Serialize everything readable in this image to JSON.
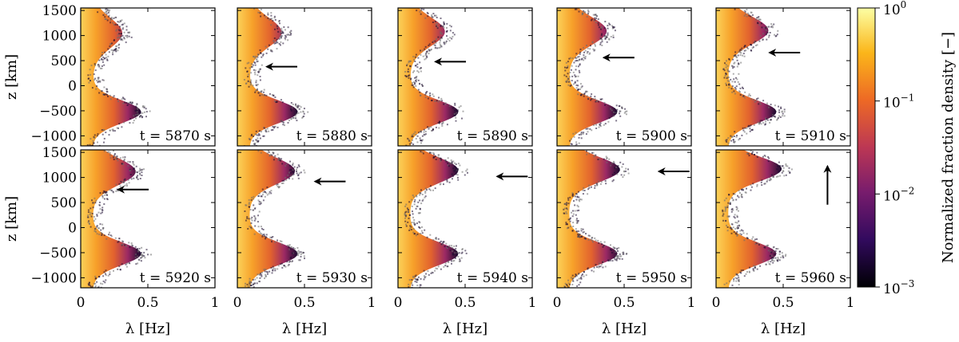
{
  "chart_data": {
    "type": "heatmap",
    "description_free": true,
    "panels": [
      {
        "time_label": "t = 5870 s",
        "t": 5870,
        "arrow": null
      },
      {
        "time_label": "t = 5880 s",
        "t": 5880,
        "arrow": {
          "dir": "left",
          "lambda": 0.22,
          "z": 380
        }
      },
      {
        "time_label": "t = 5890 s",
        "t": 5890,
        "arrow": {
          "dir": "left",
          "lambda": 0.28,
          "z": 480
        }
      },
      {
        "time_label": "t = 5900 s",
        "t": 5900,
        "arrow": {
          "dir": "left",
          "lambda": 0.35,
          "z": 560
        }
      },
      {
        "time_label": "t = 5910 s",
        "t": 5910,
        "arrow": {
          "dir": "left",
          "lambda": 0.4,
          "z": 660
        }
      },
      {
        "time_label": "t = 5920 s",
        "t": 5920,
        "arrow": {
          "dir": "left",
          "lambda": 0.28,
          "z": 760
        }
      },
      {
        "time_label": "t = 5930 s",
        "t": 5930,
        "arrow": {
          "dir": "left",
          "lambda": 0.58,
          "z": 920
        }
      },
      {
        "time_label": "t = 5940 s",
        "t": 5940,
        "arrow": {
          "dir": "left",
          "lambda": 0.74,
          "z": 1020
        }
      },
      {
        "time_label": "t = 5950 s",
        "t": 5950,
        "arrow": {
          "dir": "left",
          "lambda": 0.76,
          "z": 1120
        }
      },
      {
        "time_label": "t = 5960 s",
        "t": 5960,
        "arrow": {
          "dir": "up",
          "lambda": 0.83,
          "z": 1220
        }
      }
    ],
    "xlabel": "λ [Hz]",
    "ylabel": "z [km]",
    "xlim": [
      0,
      1
    ],
    "ylim": [
      -1200,
      1550
    ],
    "xticks": [
      "0",
      "0.5",
      "1"
    ],
    "yticks": [
      "1500",
      "1000",
      "500",
      "0",
      "−500",
      "−1000"
    ],
    "colorbar": {
      "label": "Normalized fraction density [−]",
      "scale": "log",
      "range": [
        0.001,
        1
      ],
      "ticks": [
        {
          "base": "10",
          "exp": "0"
        },
        {
          "base": "10",
          "exp": "−1"
        },
        {
          "base": "10",
          "exp": "−2"
        },
        {
          "base": "10",
          "exp": "−3"
        }
      ],
      "colormap": "inferno",
      "stops": [
        "#000004",
        "#320a5e",
        "#781c6d",
        "#bc3754",
        "#ed6925",
        "#fbb61a",
        "#fcffa4"
      ]
    }
  }
}
